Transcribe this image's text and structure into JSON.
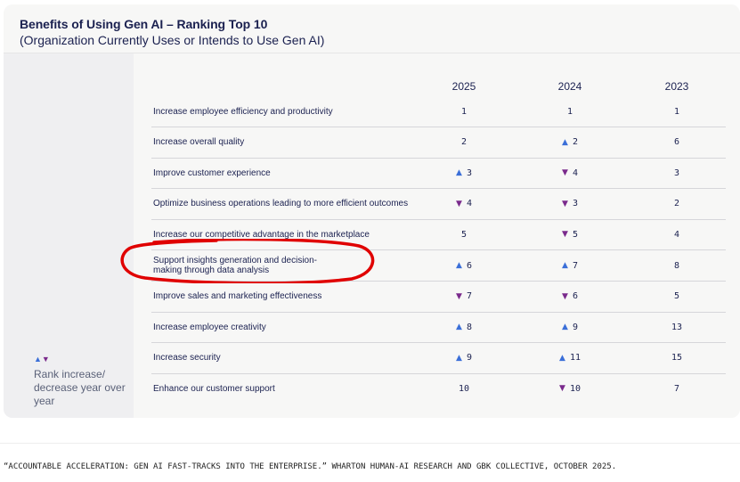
{
  "title": "Benefits of Using Gen AI – Ranking Top 10",
  "subtitle": "(Organization Currently Uses or Intends to Use Gen AI)",
  "legend": {
    "up_symbol": "▲",
    "down_symbol": "▼",
    "text": "Rank increase/ decrease year over year"
  },
  "columns": [
    "2025",
    "2024",
    "2023"
  ],
  "colors": {
    "up": "#3b6fd8",
    "down": "#7a2a8c",
    "annotation": "#e00000"
  },
  "chart_data": {
    "type": "table",
    "title": "Benefits of Using Gen AI – Ranking Top 10",
    "subtitle": "(Organization Currently Uses or Intends to Use Gen AI)",
    "columns": [
      "2025",
      "2024",
      "2023"
    ],
    "rows": [
      {
        "label": "Increase employee efficiency and productivity",
        "values": [
          1,
          1,
          1
        ],
        "trend": [
          "",
          "",
          ""
        ]
      },
      {
        "label": "Increase overall quality",
        "values": [
          2,
          2,
          6
        ],
        "trend": [
          "",
          "up",
          ""
        ]
      },
      {
        "label": "Improve customer experience",
        "values": [
          3,
          4,
          3
        ],
        "trend": [
          "up",
          "down",
          ""
        ]
      },
      {
        "label": "Optimize business operations leading to more efficient outcomes",
        "values": [
          4,
          3,
          2
        ],
        "trend": [
          "down",
          "down",
          ""
        ]
      },
      {
        "label": "Increase our competitive advantage in the marketplace",
        "values": [
          5,
          5,
          4
        ],
        "trend": [
          "",
          "down",
          ""
        ]
      },
      {
        "label": "Support insights generation and decision-making through data analysis",
        "values": [
          6,
          7,
          8
        ],
        "trend": [
          "up",
          "up",
          ""
        ]
      },
      {
        "label": "Improve sales and marketing effectiveness",
        "values": [
          7,
          6,
          5
        ],
        "trend": [
          "down",
          "down",
          ""
        ]
      },
      {
        "label": "Increase employee creativity",
        "values": [
          8,
          9,
          13
        ],
        "trend": [
          "up",
          "up",
          ""
        ]
      },
      {
        "label": "Increase security",
        "values": [
          9,
          11,
          15
        ],
        "trend": [
          "up",
          "up",
          ""
        ]
      },
      {
        "label": "Enhance our customer support",
        "values": [
          10,
          10,
          7
        ],
        "trend": [
          "",
          "down",
          ""
        ]
      }
    ]
  },
  "source": "“ACCOUNTABLE ACCELERATION: GEN AI FAST-TRACKS INTO THE ENTERPRISE.” WHARTON HUMAN-AI RESEARCH AND GBK COLLECTIVE, OCTOBER 2025."
}
